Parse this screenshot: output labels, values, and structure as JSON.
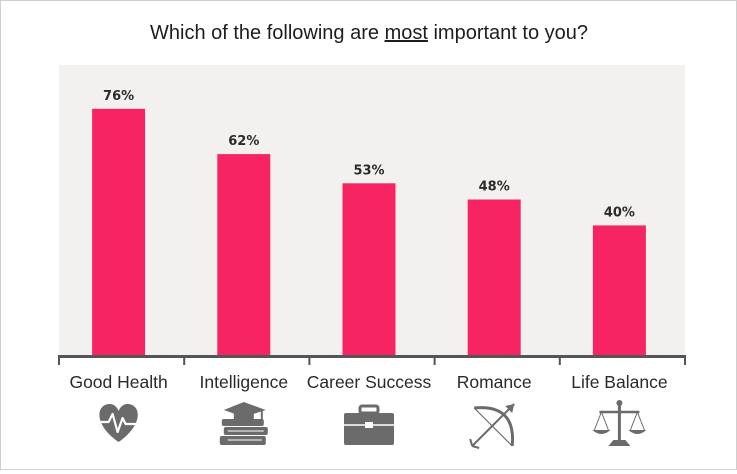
{
  "chart_data": {
    "type": "bar",
    "title_parts": [
      "Which of the following are ",
      "most",
      " important to you?"
    ],
    "categories": [
      "Good Health",
      "Intelligence",
      "Career Success",
      "Romance",
      "Life Balance"
    ],
    "values": [
      76,
      62,
      53,
      48,
      40
    ],
    "value_labels": [
      "76%",
      "62%",
      "53%",
      "48%",
      "40%"
    ],
    "icons": [
      "heart-rate-icon",
      "books-graduation-cap-icon",
      "briefcase-icon",
      "bow-and-arrow-icon",
      "balance-scale-icon"
    ],
    "ylim": [
      0,
      100
    ],
    "grid": false,
    "colors": {
      "bar": "#f72464",
      "plot_background": "#f3f1f0",
      "axis": "#555555",
      "icon": "#6b6b6b"
    }
  }
}
